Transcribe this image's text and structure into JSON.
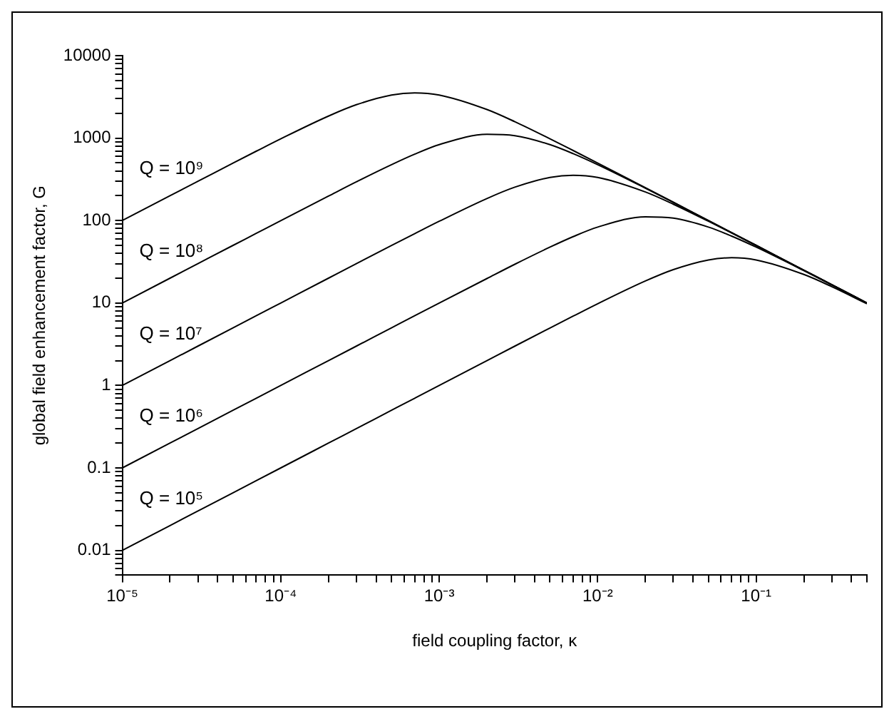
{
  "chart_data": {
    "type": "line",
    "xlabel": "field coupling factor, κ",
    "ylabel": "global field enhancement factor, G",
    "log": "xy",
    "grid": false,
    "legend": false,
    "marker": "none",
    "line_style": "solid",
    "xlim": [
      1e-05,
      0.5
    ],
    "ylim": [
      0.005,
      10000
    ],
    "xticks": [
      {
        "value": 1e-05,
        "label": "10⁻⁵"
      },
      {
        "value": 2e-05,
        "label": null
      },
      {
        "value": 3e-05,
        "label": null
      },
      {
        "value": 4e-05,
        "label": null
      },
      {
        "value": 5e-05,
        "label": null
      },
      {
        "value": 6e-05,
        "label": null
      },
      {
        "value": 7e-05,
        "label": null
      },
      {
        "value": 8e-05,
        "label": null
      },
      {
        "value": 9e-05,
        "label": null
      },
      {
        "value": 0.0001,
        "label": "10⁻⁴"
      },
      {
        "value": 0.0002,
        "label": null
      },
      {
        "value": 0.0003,
        "label": null
      },
      {
        "value": 0.0004,
        "label": null
      },
      {
        "value": 0.0005,
        "label": null
      },
      {
        "value": 0.0006,
        "label": null
      },
      {
        "value": 0.0007,
        "label": null
      },
      {
        "value": 0.0008,
        "label": null
      },
      {
        "value": 0.0009,
        "label": null
      },
      {
        "value": 0.001,
        "label": "10⁻³"
      },
      {
        "value": 0.002,
        "label": null
      },
      {
        "value": 0.003,
        "label": null
      },
      {
        "value": 0.004,
        "label": null
      },
      {
        "value": 0.005,
        "label": null
      },
      {
        "value": 0.006,
        "label": null
      },
      {
        "value": 0.007,
        "label": null
      },
      {
        "value": 0.008,
        "label": null
      },
      {
        "value": 0.009,
        "label": null
      },
      {
        "value": 0.01,
        "label": "10⁻²"
      },
      {
        "value": 0.02,
        "label": null
      },
      {
        "value": 0.03,
        "label": null
      },
      {
        "value": 0.04,
        "label": null
      },
      {
        "value": 0.05,
        "label": null
      },
      {
        "value": 0.06,
        "label": null
      },
      {
        "value": 0.07,
        "label": null
      },
      {
        "value": 0.08,
        "label": null
      },
      {
        "value": 0.09,
        "label": null
      },
      {
        "value": 0.1,
        "label": "10⁻¹"
      },
      {
        "value": 0.2,
        "label": null
      },
      {
        "value": 0.3,
        "label": null
      },
      {
        "value": 0.4,
        "label": null
      },
      {
        "value": 0.5,
        "label": null
      }
    ],
    "yticks": [
      {
        "value": 0.005,
        "label": null
      },
      {
        "value": 0.006,
        "label": null
      },
      {
        "value": 0.007,
        "label": null
      },
      {
        "value": 0.008,
        "label": null
      },
      {
        "value": 0.009,
        "label": null
      },
      {
        "value": 0.01,
        "label": "0.01"
      },
      {
        "value": 0.02,
        "label": null
      },
      {
        "value": 0.03,
        "label": null
      },
      {
        "value": 0.04,
        "label": null
      },
      {
        "value": 0.05,
        "label": null
      },
      {
        "value": 0.06,
        "label": null
      },
      {
        "value": 0.07,
        "label": null
      },
      {
        "value": 0.08,
        "label": null
      },
      {
        "value": 0.09,
        "label": null
      },
      {
        "value": 0.1,
        "label": "0.1"
      },
      {
        "value": 0.2,
        "label": null
      },
      {
        "value": 0.3,
        "label": null
      },
      {
        "value": 0.4,
        "label": null
      },
      {
        "value": 0.5,
        "label": null
      },
      {
        "value": 0.6,
        "label": null
      },
      {
        "value": 0.7,
        "label": null
      },
      {
        "value": 0.8,
        "label": null
      },
      {
        "value": 0.9,
        "label": null
      },
      1,
      {
        "value": 2,
        "label": null
      },
      {
        "value": 3,
        "label": null
      },
      {
        "value": 4,
        "label": null
      },
      {
        "value": 5,
        "label": null
      },
      {
        "value": 6,
        "label": null
      },
      {
        "value": 7,
        "label": null
      },
      {
        "value": 8,
        "label": null
      },
      {
        "value": 9,
        "label": null
      },
      10,
      {
        "value": 20,
        "label": null
      },
      {
        "value": 30,
        "label": null
      },
      {
        "value": 40,
        "label": null
      },
      {
        "value": 50,
        "label": null
      },
      {
        "value": 60,
        "label": null
      },
      {
        "value": 70,
        "label": null
      },
      {
        "value": 80,
        "label": null
      },
      {
        "value": 90,
        "label": null
      },
      100,
      {
        "value": 200,
        "label": null
      },
      {
        "value": 300,
        "label": null
      },
      {
        "value": 400,
        "label": null
      },
      {
        "value": 500,
        "label": null
      },
      {
        "value": 600,
        "label": null
      },
      {
        "value": 700,
        "label": null
      },
      {
        "value": 800,
        "label": null
      },
      {
        "value": 900,
        "label": null
      },
      1000,
      {
        "value": 2000,
        "label": null
      },
      {
        "value": 3000,
        "label": null
      },
      {
        "value": 4000,
        "label": null
      },
      {
        "value": 5000,
        "label": null
      },
      {
        "value": 6000,
        "label": null
      },
      {
        "value": 7000,
        "label": null
      },
      {
        "value": 8000,
        "label": null
      },
      {
        "value": 9000,
        "label": null
      },
      10000
    ],
    "x": [
      1e-05,
      2e-05,
      3e-05,
      5e-05,
      7e-05,
      0.0001,
      0.0002,
      0.0003,
      0.0005,
      0.0007,
      0.001,
      0.002,
      0.003,
      0.005,
      0.007,
      0.01,
      0.02,
      0.03,
      0.05,
      0.07,
      0.1,
      0.2,
      0.3,
      0.5
    ],
    "series": [
      {
        "name": "Q = 10⁹",
        "color": "#000000",
        "values": [
          100,
          200,
          299,
          498,
          693,
          980,
          1850,
          2540,
          3330,
          3540,
          3330,
          2220,
          1580,
          980,
          707,
          498,
          250,
          167,
          100,
          71.4,
          50,
          25,
          16.7,
          10
        ]
      },
      {
        "name": "Q = 10⁸",
        "color": "#000000",
        "values": [
          10,
          20,
          30,
          50,
          69.9,
          99.8,
          198,
          295,
          476,
          638,
          833,
          1110,
          1070,
          833,
          648,
          476,
          247,
          166,
          99.8,
          71.4,
          50,
          25,
          16.7,
          10
        ]
      },
      {
        "name": "Q = 10⁷",
        "color": "#000000",
        "values": [
          1,
          2,
          3,
          5,
          7,
          10,
          20,
          30,
          49.8,
          69.3,
          98,
          185,
          254,
          333,
          354,
          333,
          222,
          158,
          98,
          70.7,
          49.8,
          25,
          16.7,
          10
        ]
      },
      {
        "name": "Q = 10⁶",
        "color": "#000000",
        "values": [
          0.1,
          0.2,
          0.3,
          0.5,
          0.7,
          1,
          2,
          3,
          5,
          7,
          9.98,
          19.8,
          29.5,
          47.6,
          63.8,
          83.3,
          111,
          107,
          83.3,
          64.8,
          47.6,
          24.7,
          16.6,
          9.98
        ]
      },
      {
        "name": "Q = 10⁵",
        "color": "#000000",
        "values": [
          0.01,
          0.02,
          0.03,
          0.05,
          0.07,
          0.1,
          0.2,
          0.3,
          0.5,
          0.7,
          1,
          2,
          3,
          4.98,
          6.93,
          9.8,
          18.5,
          25.4,
          33.3,
          35.4,
          33.3,
          22.2,
          15.8,
          9.8
        ]
      }
    ]
  }
}
